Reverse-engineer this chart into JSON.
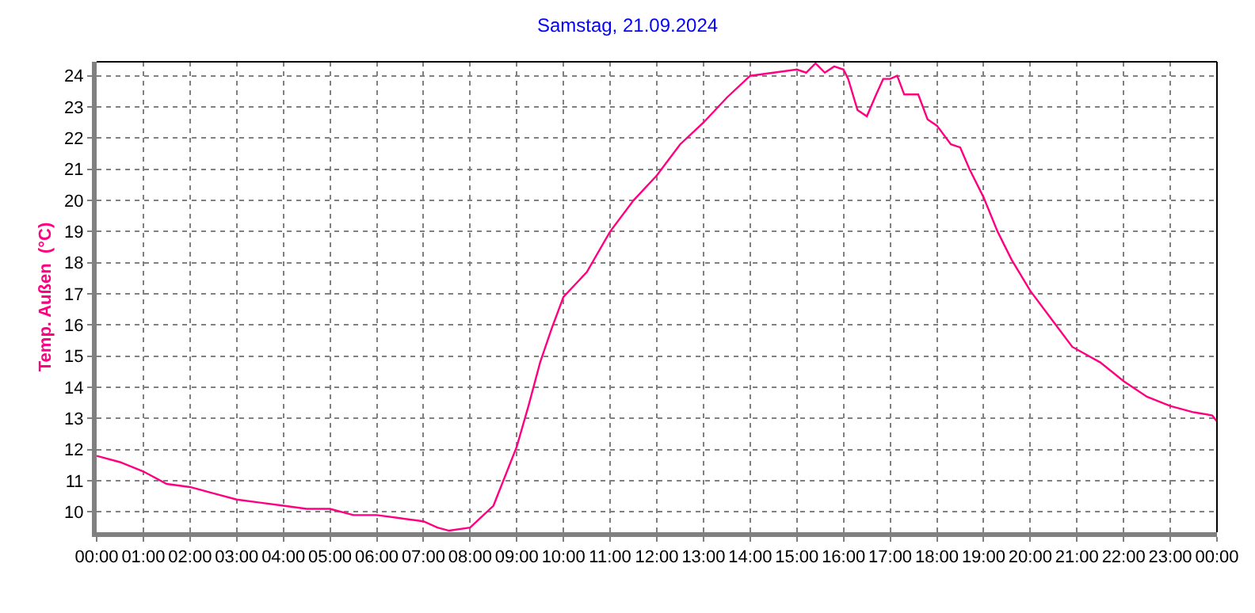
{
  "chart_data": {
    "type": "line",
    "title": "Samstag, 21.09.2024",
    "ylabel": "Temp. Außen  (°C)",
    "x": [
      0,
      0.5,
      1,
      1.5,
      2,
      2.5,
      3,
      3.5,
      4,
      4.5,
      5,
      5.5,
      6,
      6.5,
      7,
      7.3,
      7.55,
      8,
      8.5,
      9,
      9.25,
      9.5,
      9.75,
      10,
      10.25,
      10.5,
      11,
      11.5,
      12,
      12.5,
      13,
      13.5,
      14,
      14.5,
      15,
      15.2,
      15.4,
      15.6,
      15.8,
      16,
      16.1,
      16.3,
      16.5,
      16.7,
      16.85,
      17,
      17.15,
      17.3,
      17.6,
      17.8,
      18,
      18.3,
      18.5,
      18.7,
      19,
      19.3,
      19.6,
      20,
      20.5,
      20.9,
      21.5,
      22,
      22.5,
      23,
      23.5,
      23.9,
      24
    ],
    "series": [
      {
        "color": "#ff0080",
        "values": [
          11.8,
          11.6,
          11.3,
          10.9,
          10.8,
          10.6,
          10.4,
          10.3,
          10.2,
          10.1,
          10.1,
          9.9,
          9.9,
          9.8,
          9.7,
          9.5,
          9.4,
          9.5,
          10.2,
          12.1,
          13.4,
          14.8,
          15.9,
          16.9,
          17.3,
          17.7,
          19.0,
          20.0,
          20.8,
          21.8,
          22.5,
          23.3,
          24.0,
          24.1,
          24.2,
          24.1,
          24.4,
          24.1,
          24.3,
          24.2,
          23.9,
          22.9,
          22.7,
          23.4,
          23.9,
          23.9,
          24.0,
          23.4,
          23.4,
          22.6,
          22.4,
          21.8,
          21.7,
          21.0,
          20.1,
          19.0,
          18.1,
          17.1,
          16.1,
          15.3,
          14.8,
          14.2,
          13.7,
          13.4,
          13.2,
          13.1,
          12.9
        ]
      }
    ],
    "xlim": [
      0,
      24
    ],
    "xticks": [
      {
        "value": 0,
        "label": "00:00"
      },
      {
        "value": 1,
        "label": "01:00"
      },
      {
        "value": 2,
        "label": "02:00"
      },
      {
        "value": 3,
        "label": "03:00"
      },
      {
        "value": 4,
        "label": "04:00"
      },
      {
        "value": 5,
        "label": "05:00"
      },
      {
        "value": 6,
        "label": "06:00"
      },
      {
        "value": 7,
        "label": "07:00"
      },
      {
        "value": 8,
        "label": "08:00"
      },
      {
        "value": 9,
        "label": "09:00"
      },
      {
        "value": 10,
        "label": "10:00"
      },
      {
        "value": 11,
        "label": "11:00"
      },
      {
        "value": 12,
        "label": "12:00"
      },
      {
        "value": 13,
        "label": "13:00"
      },
      {
        "value": 14,
        "label": "14:00"
      },
      {
        "value": 15,
        "label": "15:00"
      },
      {
        "value": 16,
        "label": "16:00"
      },
      {
        "value": 17,
        "label": "17:00"
      },
      {
        "value": 18,
        "label": "18:00"
      },
      {
        "value": 19,
        "label": "19:00"
      },
      {
        "value": 20,
        "label": "20:00"
      },
      {
        "value": 21,
        "label": "21:00"
      },
      {
        "value": 22,
        "label": "22:00"
      },
      {
        "value": 23,
        "label": "23:00"
      },
      {
        "value": 24,
        "label": "00:00"
      }
    ],
    "ylim": [
      9.35,
      24.45
    ],
    "yticks": [
      10,
      11,
      12,
      13,
      14,
      15,
      16,
      17,
      18,
      19,
      20,
      21,
      22,
      23,
      24
    ],
    "grid": true,
    "marker": "none",
    "line_style": "solid"
  }
}
